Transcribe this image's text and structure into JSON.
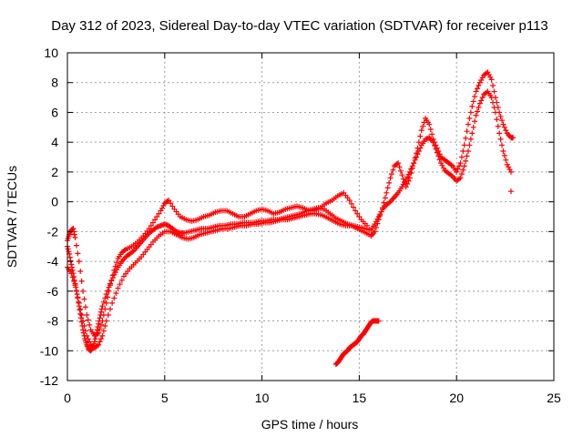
{
  "chart_data": {
    "type": "scatter",
    "title": "Day 312 of 2023, Sidereal Day-to-day VTEC variation (SDTVAR) for receiver p113",
    "xlabel": "GPS time / hours",
    "ylabel": "SDTVAR / TECUs",
    "xlim": [
      0,
      25
    ],
    "ylim": [
      -12,
      10
    ],
    "xticks": [
      "0",
      "5",
      "10",
      "15",
      "20",
      "25"
    ],
    "yticks": [
      "-12",
      "-10",
      "-8",
      "-6",
      "-4",
      "-2",
      "0",
      "2",
      "4",
      "6",
      "8",
      "10"
    ],
    "grid": true,
    "marker": "plus",
    "color": "#ff0000",
    "series": [
      {
        "x": [
          0.0,
          0.1,
          0.2,
          0.3,
          0.4,
          0.5,
          0.6,
          0.7,
          0.8,
          0.9,
          1.0,
          1.1,
          1.2,
          1.3,
          1.4,
          1.5,
          1.6,
          1.7,
          1.8,
          2.0,
          2.2,
          2.4,
          2.6,
          2.8,
          3.0,
          3.2,
          3.4,
          3.6,
          3.8,
          4.0,
          4.2,
          4.4,
          4.6,
          4.8,
          5.0,
          5.2,
          5.4,
          5.6,
          5.8,
          6.0,
          6.3,
          6.6,
          6.9,
          7.2,
          7.5,
          7.8,
          8.1,
          8.4,
          8.7,
          9.0,
          9.3,
          9.6,
          9.9,
          10.2,
          10.5,
          10.8,
          11.1,
          11.4,
          11.7,
          12.0,
          12.3,
          12.6,
          12.9,
          13.2,
          13.5,
          13.8,
          14.1,
          14.4,
          14.7,
          15.0,
          15.3,
          15.6,
          15.8,
          16.0,
          16.2,
          16.4,
          16.6,
          16.8,
          17.0,
          17.2,
          17.4,
          17.6,
          17.8,
          18.0,
          18.2,
          18.4,
          18.6,
          18.8,
          19.0,
          19.2,
          19.4,
          19.6,
          19.8,
          20.0,
          20.2,
          20.4,
          20.6,
          20.8,
          21.0,
          21.2,
          21.4,
          21.6,
          21.8,
          22.0,
          22.2,
          22.4,
          22.6,
          22.8
        ],
        "y": [
          -3.0,
          -3.5,
          -4.2,
          -4.8,
          -5.5,
          -6.2,
          -7.0,
          -7.8,
          -8.6,
          -9.2,
          -9.6,
          -9.9,
          -10.0,
          -9.8,
          -9.4,
          -8.8,
          -8.2,
          -7.6,
          -7.0,
          -6.2,
          -5.5,
          -4.9,
          -4.4,
          -4.0,
          -3.7,
          -3.5,
          -3.3,
          -3.0,
          -2.7,
          -2.4,
          -2.1,
          -1.9,
          -1.7,
          -1.6,
          -1.5,
          -1.6,
          -1.8,
          -2.0,
          -2.1,
          -2.1,
          -2.0,
          -1.9,
          -1.8,
          -1.8,
          -1.7,
          -1.6,
          -1.6,
          -1.5,
          -1.5,
          -1.4,
          -1.4,
          -1.4,
          -1.3,
          -1.3,
          -1.2,
          -1.2,
          -1.1,
          -1.0,
          -0.9,
          -0.8,
          -0.6,
          -0.5,
          -0.4,
          -0.5,
          -0.8,
          -1.1,
          -1.3,
          -1.5,
          -1.6,
          -1.7,
          -1.8,
          -1.9,
          -1.5,
          -1.0,
          -0.5,
          -0.2,
          0.0,
          0.3,
          0.6,
          1.0,
          1.5,
          2.0,
          2.6,
          3.2,
          3.8,
          4.2,
          4.3,
          4.0,
          3.3,
          2.6,
          2.1,
          1.9,
          1.7,
          1.4,
          1.6,
          2.4,
          3.4,
          4.6,
          5.8,
          6.6,
          7.2,
          7.4,
          7.0,
          6.0,
          4.6,
          3.4,
          2.5,
          2.0
        ]
      },
      {
        "x": [
          0.0,
          0.1,
          0.2,
          0.3,
          0.4,
          0.6,
          0.8,
          1.0,
          1.2,
          1.4,
          1.6,
          1.8,
          2.0,
          2.2,
          2.4,
          2.6,
          2.8,
          3.0,
          3.3,
          3.6,
          3.9,
          4.2,
          4.5,
          4.8,
          5.0,
          5.2,
          5.5,
          5.8,
          6.1,
          6.4,
          6.7,
          7.0,
          7.3,
          7.6,
          7.9,
          8.2,
          8.5,
          8.8,
          9.1,
          9.4,
          9.7,
          10.0,
          10.3,
          10.6,
          10.9,
          11.2,
          11.5,
          11.8,
          12.1,
          12.4,
          12.7,
          13.0,
          13.3,
          13.6,
          13.9,
          14.2,
          14.5,
          14.8,
          15.1,
          15.4
        ],
        "y": [
          -2.6,
          -2.2,
          -1.9,
          -1.8,
          -2.4,
          -4.0,
          -6.0,
          -7.6,
          -8.6,
          -9.0,
          -8.8,
          -8.0,
          -6.8,
          -5.6,
          -4.6,
          -3.8,
          -3.4,
          -3.2,
          -3.0,
          -2.7,
          -2.3,
          -1.8,
          -1.2,
          -0.6,
          -0.1,
          0.1,
          -0.5,
          -1.0,
          -1.2,
          -1.3,
          -1.2,
          -1.0,
          -0.9,
          -0.7,
          -0.6,
          -0.6,
          -0.8,
          -1.0,
          -1.0,
          -0.8,
          -0.6,
          -0.5,
          -0.6,
          -0.8,
          -0.7,
          -0.5,
          -0.4,
          -0.3,
          -0.4,
          -0.6,
          -0.6,
          -0.4,
          -0.1,
          0.1,
          0.4,
          0.6,
          0.1,
          -0.6,
          -1.2,
          -1.6
        ]
      },
      {
        "x": [
          0.0,
          0.2,
          0.4,
          0.6,
          0.8,
          1.0,
          1.2,
          1.4,
          1.6,
          1.8,
          2.0,
          2.3,
          2.6,
          2.9,
          3.2,
          3.5,
          3.8,
          4.1,
          4.4,
          4.7,
          5.0,
          5.3,
          5.6,
          5.9,
          6.2,
          6.5,
          6.8,
          7.1,
          7.4,
          7.7,
          8.0,
          8.3,
          8.6,
          8.9,
          9.2,
          9.5,
          9.8,
          10.1,
          10.4,
          10.7,
          11.0,
          11.3,
          11.6,
          11.9,
          12.2,
          12.5,
          12.8,
          13.1,
          13.4,
          13.7,
          14.0,
          14.3,
          14.6,
          14.9,
          15.2,
          15.5
        ],
        "y": [
          -4.4,
          -4.8,
          -5.6,
          -6.8,
          -8.0,
          -9.0,
          -9.6,
          -9.8,
          -9.6,
          -9.0,
          -8.0,
          -6.8,
          -5.8,
          -5.0,
          -4.5,
          -4.1,
          -3.7,
          -3.2,
          -2.7,
          -2.3,
          -2.0,
          -2.0,
          -2.2,
          -2.4,
          -2.5,
          -2.4,
          -2.2,
          -2.1,
          -2.0,
          -1.9,
          -1.8,
          -1.8,
          -1.7,
          -1.6,
          -1.6,
          -1.5,
          -1.5,
          -1.4,
          -1.4,
          -1.3,
          -1.2,
          -1.2,
          -1.1,
          -1.0,
          -0.9,
          -0.8,
          -0.8,
          -0.9,
          -1.1,
          -1.3,
          -1.5,
          -1.6,
          -1.6,
          -1.8,
          -2.0,
          -2.2
        ]
      },
      {
        "x": [
          13.8,
          13.9,
          14.0,
          14.1,
          14.2,
          14.3,
          14.4,
          14.5,
          14.6,
          14.7,
          14.8,
          14.9,
          15.0,
          15.1,
          15.2,
          15.3,
          15.4,
          15.5,
          15.6,
          15.7,
          15.8,
          15.9,
          16.0
        ],
        "y": [
          -10.9,
          -10.8,
          -10.6,
          -10.4,
          -10.2,
          -10.1,
          -10.0,
          -9.8,
          -9.7,
          -9.6,
          -9.5,
          -9.4,
          -9.2,
          -9.0,
          -8.9,
          -8.7,
          -8.5,
          -8.3,
          -8.1,
          -8.0,
          -8.0,
          -8.0,
          -8.0
        ]
      },
      {
        "x": [
          15.6,
          15.8,
          16.0,
          16.2,
          16.4,
          16.6,
          16.8,
          17.0,
          17.2,
          17.4,
          17.6,
          17.8,
          18.0,
          18.2,
          18.4,
          18.6,
          18.8,
          19.0,
          19.2,
          19.4,
          19.6,
          19.8,
          20.0,
          20.2,
          20.4,
          20.6,
          20.8,
          21.0,
          21.2,
          21.4,
          21.6,
          21.8,
          22.0,
          22.2,
          22.4,
          22.6,
          22.8,
          22.9
        ],
        "y": [
          -2.3,
          -2.0,
          -1.2,
          -0.4,
          0.6,
          1.6,
          2.4,
          2.6,
          1.8,
          1.0,
          1.6,
          2.6,
          3.6,
          4.8,
          5.6,
          5.2,
          4.2,
          3.6,
          3.0,
          2.8,
          2.6,
          2.4,
          2.0,
          2.6,
          3.8,
          5.2,
          6.4,
          7.4,
          8.0,
          8.5,
          8.7,
          8.2,
          7.0,
          6.0,
          5.2,
          4.6,
          4.3,
          4.3
        ]
      },
      {
        "x": [
          22.8
        ],
        "y": [
          0.7
        ]
      }
    ]
  }
}
